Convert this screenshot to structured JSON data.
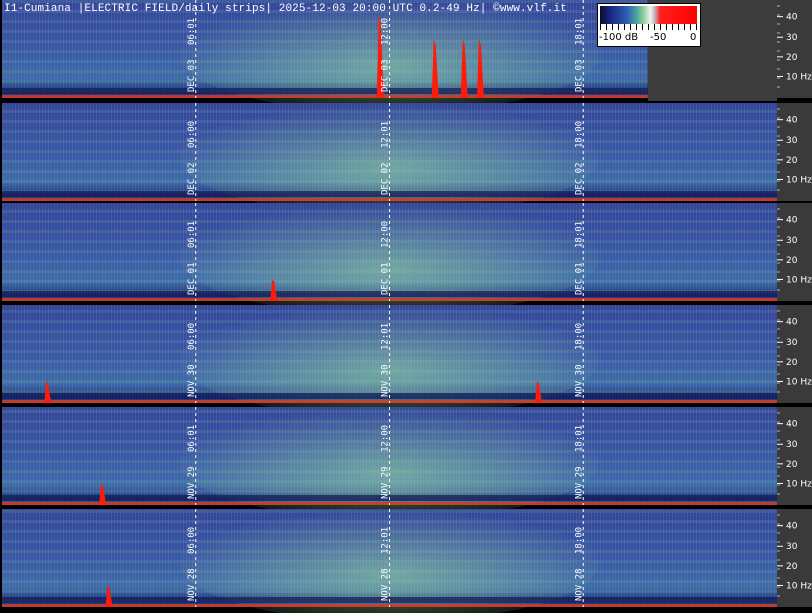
{
  "title": "I1-Cumiana |ELECTRIC FIELD/daily strips| 2025-12-03 20:00 UTC 0.2-49 Hz| ©www.vlf.it",
  "colorbar": {
    "labels": [
      "-100 dB",
      "-50",
      "0"
    ]
  },
  "chart_data": {
    "type": "heatmap",
    "title": "I1-Cumiana |ELECTRIC FIELD/daily strips| 2025-12-03 20:00 UTC 0.2-49 Hz| ©www.vlf.it",
    "y_ticks": [
      "40",
      "30",
      "20",
      "10 Hz"
    ],
    "ylim_hz": [
      0.2,
      49
    ],
    "color_scale_db": [
      -100,
      0
    ],
    "strips": [
      {
        "date": "DEC 03",
        "time_labels": [
          "06:01",
          "12:00",
          "18:01"
        ],
        "data_end_hour": 20,
        "red_bursts_hours": [
          11.7,
          13.4,
          14.3,
          14.8
        ]
      },
      {
        "date": "DEC 02",
        "time_labels": [
          "06:00",
          "12:01",
          "18:00"
        ],
        "data_end_hour": 24,
        "red_bursts_hours": []
      },
      {
        "date": "DEC 01",
        "time_labels": [
          "06:01",
          "12:00",
          "18:01"
        ],
        "data_end_hour": 24,
        "red_bursts_hours": [
          8.4
        ]
      },
      {
        "date": "NOV 30",
        "time_labels": [
          "06:00",
          "12:01",
          "18:00"
        ],
        "data_end_hour": 24,
        "red_bursts_hours": [
          1.4,
          16.6
        ]
      },
      {
        "date": "NOV 29",
        "time_labels": [
          "06:01",
          "12:00",
          "18:01"
        ],
        "data_end_hour": 24,
        "red_bursts_hours": [
          3.1
        ]
      },
      {
        "date": "NOV 28",
        "time_labels": [
          "06:00",
          "12:01",
          "18:00"
        ],
        "data_end_hour": 24,
        "red_bursts_hours": [
          3.3
        ]
      }
    ]
  }
}
